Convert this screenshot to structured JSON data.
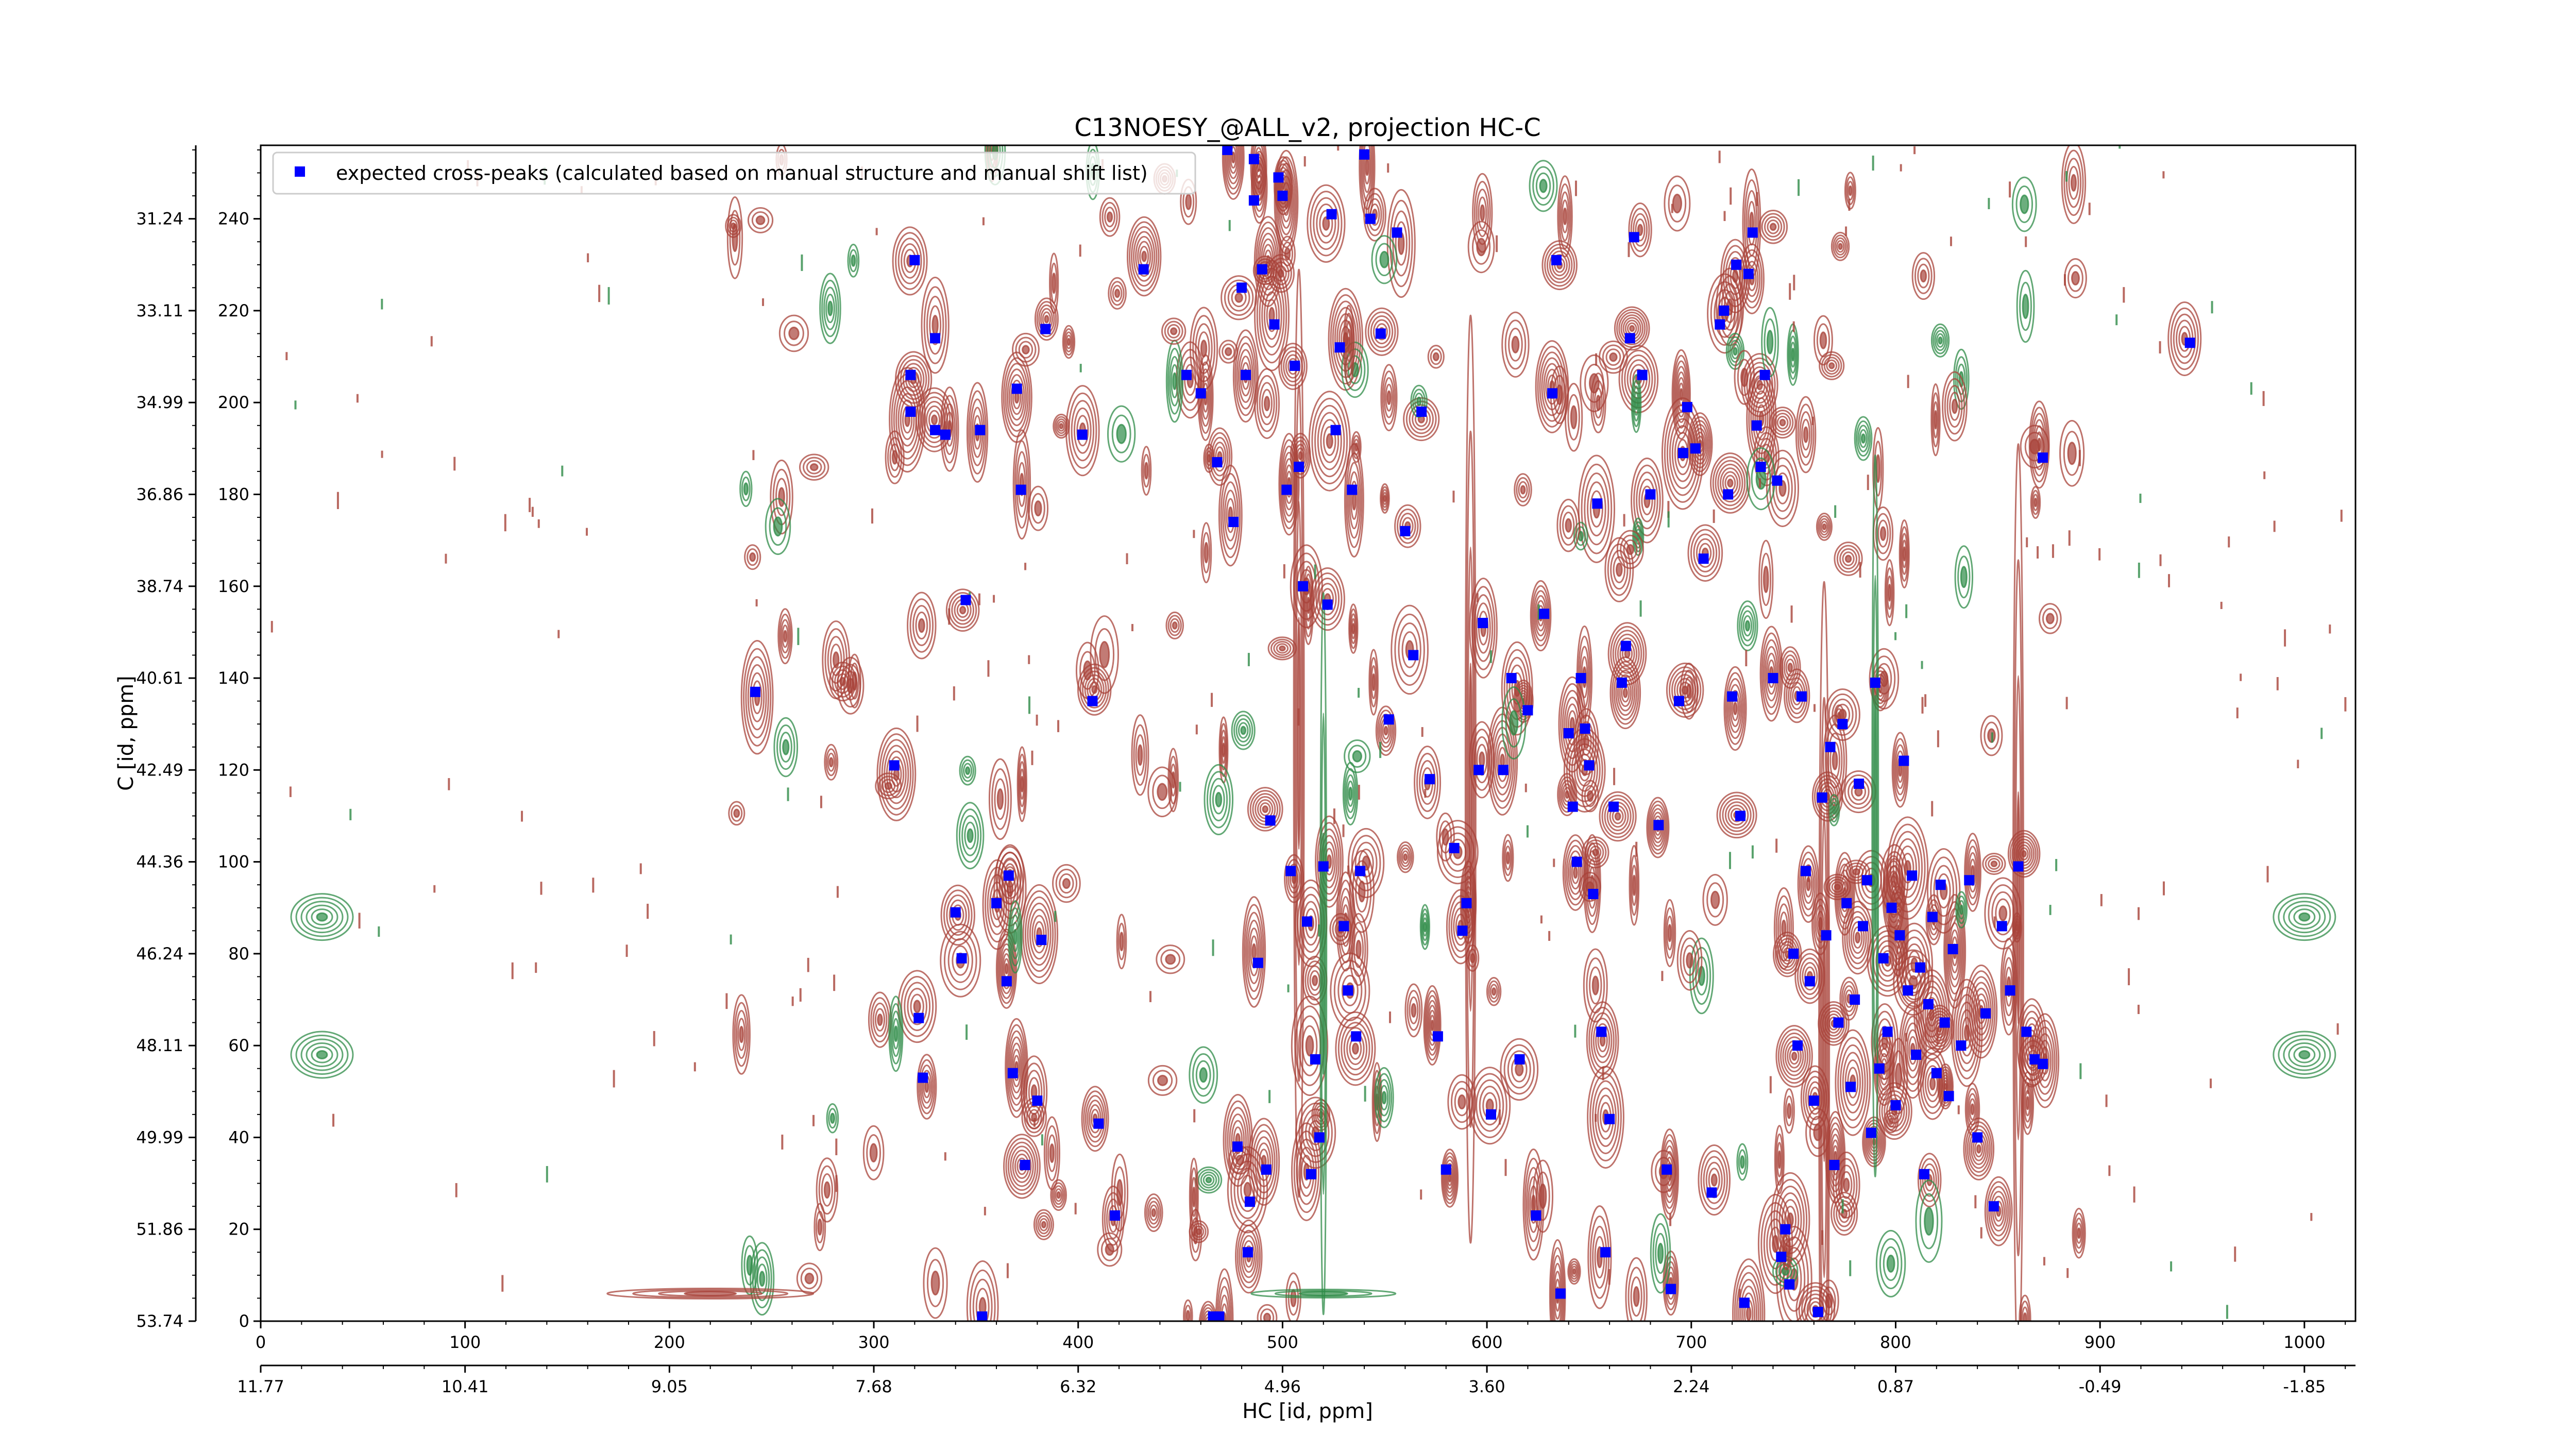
{
  "chart_data": {
    "type": "scatter",
    "title": "C13NOESY_@ALL_v2, projection HC-C",
    "xlabel": "HC [id, ppm]",
    "ylabel": "C [id, ppm]",
    "xlim": [
      0,
      1025
    ],
    "ylim": [
      0,
      256
    ],
    "x_ticks": [
      0,
      100,
      200,
      300,
      400,
      500,
      600,
      700,
      800,
      900,
      1000
    ],
    "y_ticks": [
      0,
      20,
      40,
      60,
      80,
      100,
      120,
      140,
      160,
      180,
      200,
      220,
      240
    ],
    "y_ppm_labels": [
      "53.74",
      "51.86",
      "49.99",
      "48.11",
      "46.24",
      "44.36",
      "42.49",
      "40.61",
      "38.74",
      "36.86",
      "34.99",
      "33.11",
      "31.24"
    ],
    "x_ppm_labels": [
      "11.77",
      "10.41",
      "9.05",
      "7.68",
      "6.32",
      "4.96",
      "3.60",
      "2.24",
      "0.87",
      "-0.49",
      "-1.85"
    ],
    "grid": false,
    "legend": {
      "position": "top-left",
      "marker_color": "#0000ff"
    },
    "legend_label": "expected cross-peaks (calculated based on manual structure and manual shift list)",
    "colors": {
      "positive_contours": "#a8433a",
      "negative_contours": "#2e8b47",
      "markers": "#0000ff"
    },
    "series": [
      {
        "name": "expected cross-peaks (calculated based on manual structure and manual shift list)",
        "points": [
          [
            242,
            137
          ],
          [
            310,
            121
          ],
          [
            318,
            206
          ],
          [
            318,
            198
          ],
          [
            320,
            231
          ],
          [
            322,
            66
          ],
          [
            324,
            53
          ],
          [
            330,
            214
          ],
          [
            330,
            194
          ],
          [
            335,
            193
          ],
          [
            340,
            89
          ],
          [
            343,
            79
          ],
          [
            345,
            157
          ],
          [
            352,
            194
          ],
          [
            353,
            1
          ],
          [
            360,
            91
          ],
          [
            365,
            74
          ],
          [
            366,
            97
          ],
          [
            368,
            54
          ],
          [
            370,
            203
          ],
          [
            372,
            181
          ],
          [
            374,
            34
          ],
          [
            380,
            48
          ],
          [
            382,
            83
          ],
          [
            384,
            216
          ],
          [
            402,
            193
          ],
          [
            407,
            135
          ],
          [
            410,
            43
          ],
          [
            418,
            23
          ],
          [
            432,
            229
          ],
          [
            453,
            206
          ],
          [
            460,
            202
          ],
          [
            466,
            1
          ],
          [
            468,
            187
          ],
          [
            469,
            1
          ],
          [
            473,
            255
          ],
          [
            476,
            174
          ],
          [
            478,
            38
          ],
          [
            480,
            225
          ],
          [
            482,
            206
          ],
          [
            483,
            15
          ],
          [
            484,
            26
          ],
          [
            486,
            253
          ],
          [
            486,
            244
          ],
          [
            488,
            78
          ],
          [
            490,
            229
          ],
          [
            492,
            33
          ],
          [
            494,
            109
          ],
          [
            496,
            217
          ],
          [
            498,
            249
          ],
          [
            500,
            245
          ],
          [
            502,
            181
          ],
          [
            504,
            98
          ],
          [
            506,
            208
          ],
          [
            508,
            186
          ],
          [
            510,
            160
          ],
          [
            512,
            87
          ],
          [
            514,
            32
          ],
          [
            516,
            57
          ],
          [
            518,
            40
          ],
          [
            520,
            99
          ],
          [
            522,
            156
          ],
          [
            524,
            241
          ],
          [
            526,
            194
          ],
          [
            528,
            212
          ],
          [
            530,
            86
          ],
          [
            532,
            72
          ],
          [
            534,
            181
          ],
          [
            536,
            62
          ],
          [
            538,
            98
          ],
          [
            540,
            254
          ],
          [
            543,
            240
          ],
          [
            548,
            215
          ],
          [
            552,
            131
          ],
          [
            556,
            237
          ],
          [
            560,
            172
          ],
          [
            564,
            145
          ],
          [
            568,
            198
          ],
          [
            572,
            118
          ],
          [
            576,
            62
          ],
          [
            580,
            33
          ],
          [
            584,
            103
          ],
          [
            588,
            85
          ],
          [
            590,
            91
          ],
          [
            596,
            120
          ],
          [
            598,
            152
          ],
          [
            602,
            45
          ],
          [
            608,
            120
          ],
          [
            612,
            140
          ],
          [
            616,
            57
          ],
          [
            620,
            133
          ],
          [
            624,
            23
          ],
          [
            628,
            154
          ],
          [
            632,
            202
          ],
          [
            634,
            231
          ],
          [
            636,
            6
          ],
          [
            640,
            128
          ],
          [
            642,
            112
          ],
          [
            644,
            100
          ],
          [
            646,
            140
          ],
          [
            648,
            129
          ],
          [
            650,
            121
          ],
          [
            652,
            93
          ],
          [
            654,
            178
          ],
          [
            656,
            63
          ],
          [
            658,
            15
          ],
          [
            660,
            44
          ],
          [
            662,
            112
          ],
          [
            666,
            139
          ],
          [
            668,
            147
          ],
          [
            670,
            214
          ],
          [
            672,
            236
          ],
          [
            676,
            206
          ],
          [
            680,
            180
          ],
          [
            684,
            108
          ],
          [
            688,
            33
          ],
          [
            690,
            7
          ],
          [
            694,
            135
          ],
          [
            696,
            189
          ],
          [
            698,
            199
          ],
          [
            702,
            190
          ],
          [
            706,
            166
          ],
          [
            710,
            28
          ],
          [
            714,
            217
          ],
          [
            716,
            220
          ],
          [
            718,
            180
          ],
          [
            720,
            136
          ],
          [
            722,
            230
          ],
          [
            724,
            110
          ],
          [
            726,
            4
          ],
          [
            728,
            228
          ],
          [
            730,
            237
          ],
          [
            732,
            195
          ],
          [
            734,
            186
          ],
          [
            736,
            206
          ],
          [
            740,
            140
          ],
          [
            742,
            183
          ],
          [
            744,
            14
          ],
          [
            746,
            20
          ],
          [
            748,
            8
          ],
          [
            750,
            80
          ],
          [
            752,
            60
          ],
          [
            754,
            136
          ],
          [
            756,
            98
          ],
          [
            758,
            74
          ],
          [
            760,
            48
          ],
          [
            762,
            2
          ],
          [
            764,
            114
          ],
          [
            766,
            84
          ],
          [
            768,
            125
          ],
          [
            770,
            34
          ],
          [
            772,
            65
          ],
          [
            774,
            130
          ],
          [
            776,
            91
          ],
          [
            778,
            51
          ],
          [
            780,
            70
          ],
          [
            782,
            117
          ],
          [
            784,
            86
          ],
          [
            786,
            96
          ],
          [
            788,
            41
          ],
          [
            790,
            139
          ],
          [
            792,
            55
          ],
          [
            794,
            79
          ],
          [
            796,
            63
          ],
          [
            798,
            90
          ],
          [
            800,
            47
          ],
          [
            802,
            84
          ],
          [
            804,
            122
          ],
          [
            806,
            72
          ],
          [
            808,
            97
          ],
          [
            810,
            58
          ],
          [
            812,
            77
          ],
          [
            814,
            32
          ],
          [
            816,
            69
          ],
          [
            818,
            88
          ],
          [
            820,
            54
          ],
          [
            822,
            95
          ],
          [
            824,
            65
          ],
          [
            826,
            49
          ],
          [
            828,
            81
          ],
          [
            832,
            60
          ],
          [
            836,
            96
          ],
          [
            840,
            40
          ],
          [
            844,
            67
          ],
          [
            848,
            25
          ],
          [
            852,
            86
          ],
          [
            856,
            72
          ],
          [
            860,
            99
          ],
          [
            864,
            63
          ],
          [
            868,
            57
          ],
          [
            872,
            188
          ],
          [
            872,
            56
          ],
          [
            944,
            213
          ]
        ]
      }
    ]
  }
}
